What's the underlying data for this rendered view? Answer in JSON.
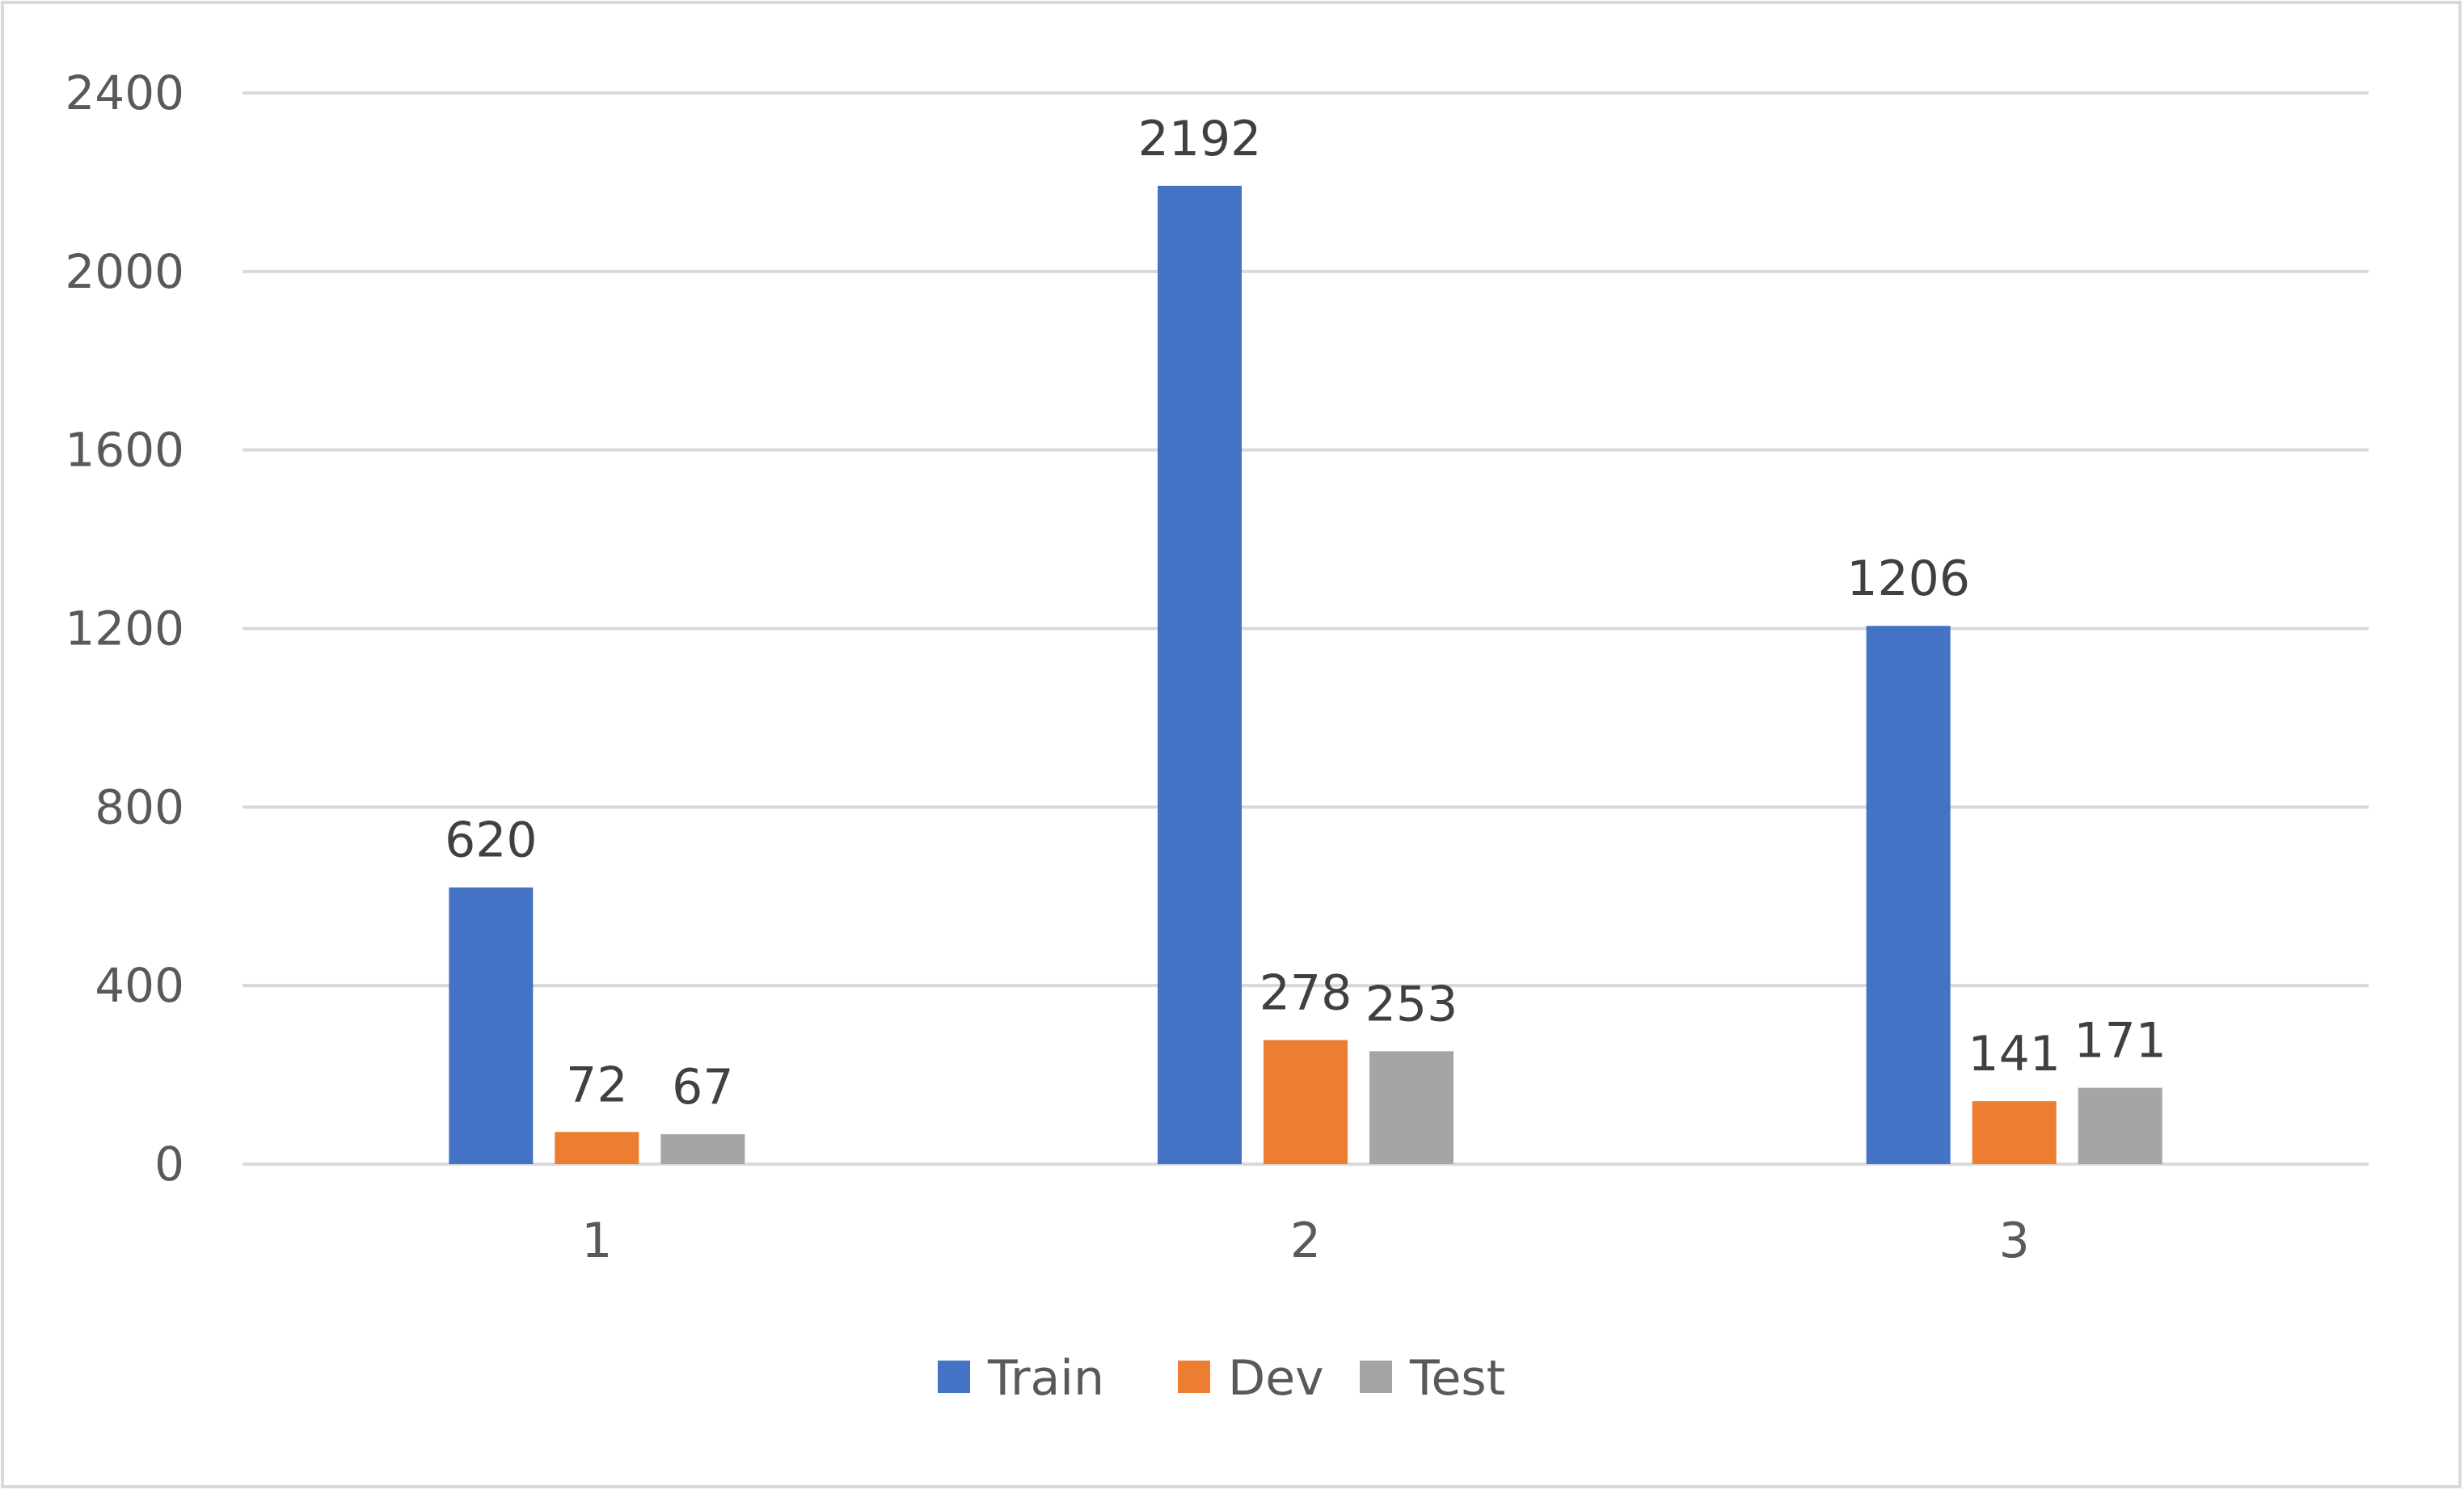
{
  "chart_data": {
    "type": "bar",
    "title": "",
    "xlabel": "",
    "ylabel": "",
    "categories": [
      "1",
      "2",
      "3"
    ],
    "series": [
      {
        "name": "Train",
        "values": [
          620,
          2192,
          1206
        ],
        "color": "#4472C4"
      },
      {
        "name": "Dev",
        "values": [
          72,
          278,
          141
        ],
        "color": "#ED7D31"
      },
      {
        "name": "Test",
        "values": [
          67,
          253,
          171
        ],
        "color": "#A5A5A5"
      }
    ],
    "y_ticks": [
      "0",
      "400",
      "800",
      "1200",
      "1600",
      "2000",
      "2400"
    ],
    "ylim": [
      0,
      2400
    ],
    "grid": true,
    "legend_position": "bottom",
    "data_labels": true,
    "colors": {
      "grid": "#D9D9D9",
      "axis": "#D9D9D9",
      "text": "#404040",
      "tick_text": "#595959",
      "border": "#D9D9D9"
    }
  }
}
